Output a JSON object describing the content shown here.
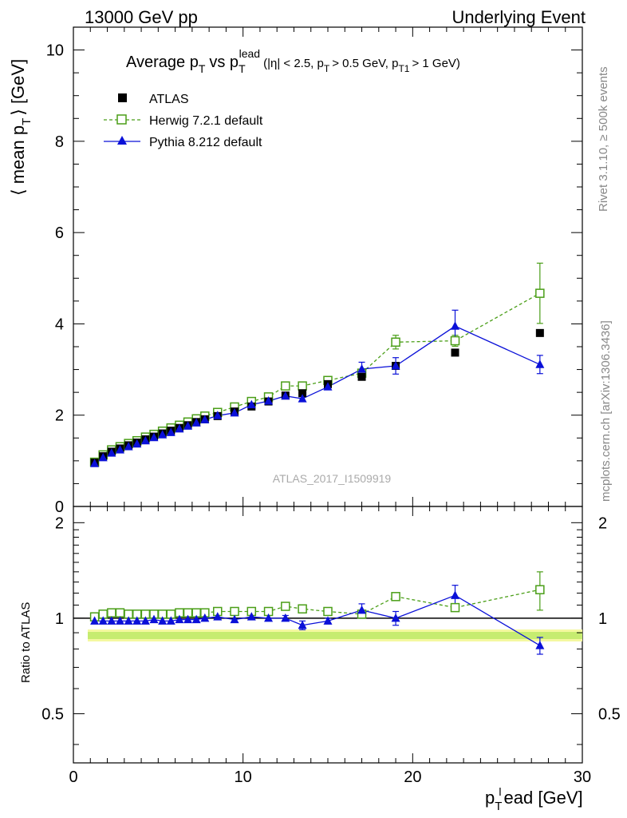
{
  "header": {
    "left": "13000 GeV pp",
    "right": "Underlying Event"
  },
  "side": {
    "rivet": "Rivet 3.1.10, ≥ 500k events",
    "mcplots": "mcplots.cern.ch [arXiv:1306.3436]"
  },
  "chart_data": {
    "type": "scatter",
    "title": {
      "main": "Average p",
      "main_sub": "T",
      "vs": "vs p",
      "vs_sub": "T",
      "vs_sup": "lead",
      "cut1": "(|η| < 2.5, p",
      "cut1_sub": "T",
      "cut2": "> 0.5 GeV, p",
      "cut2_sub": "T1",
      "cut3": "> 1 GeV)"
    },
    "ylabel": {
      "pre": "⟨ mean p",
      "sub": "T",
      "post": "⟩ [GeV]"
    },
    "xlabel": {
      "pre": "p",
      "sub": "T",
      "sup": "l",
      "post": "ead [GeV]"
    },
    "ratio_ylabel": "Ratio to ATLAS",
    "watermark": "ATLAS_2017_I1509919",
    "xlim": [
      0,
      30
    ],
    "ylim": [
      0,
      10.5
    ],
    "ratio_ylim": [
      0.35,
      2.25
    ],
    "x_ticks": [
      "0",
      "10",
      "20",
      "30"
    ],
    "y_ticks": [
      "0",
      "2",
      "4",
      "6",
      "8",
      "10"
    ],
    "ratio_ticks": [
      "0.5",
      "1",
      "2"
    ],
    "legend": [
      "ATLAS",
      "Herwig 7.2.1 default",
      "Pythia 8.212 default"
    ],
    "x": [
      1.25,
      1.75,
      2.25,
      2.75,
      3.25,
      3.75,
      4.25,
      4.75,
      5.25,
      5.75,
      6.25,
      6.75,
      7.25,
      7.75,
      8.5,
      9.5,
      10.5,
      11.5,
      12.5,
      13.5,
      15.0,
      17.0,
      19.0,
      22.5,
      27.5
    ],
    "series": [
      {
        "name": "ATLAS",
        "color": "#000000",
        "marker": "square",
        "values": [
          0.96,
          1.1,
          1.2,
          1.27,
          1.34,
          1.4,
          1.47,
          1.53,
          1.6,
          1.66,
          1.72,
          1.78,
          1.85,
          1.91,
          1.98,
          2.08,
          2.19,
          2.3,
          2.43,
          2.48,
          2.68,
          2.84,
          3.08,
          3.37,
          3.8
        ]
      },
      {
        "name": "Herwig 7.2.1 default",
        "color": "#4a9e17",
        "marker": "open-square",
        "dashed": true,
        "values": [
          0.97,
          1.13,
          1.24,
          1.31,
          1.38,
          1.44,
          1.52,
          1.58,
          1.65,
          1.72,
          1.78,
          1.85,
          1.92,
          1.98,
          2.06,
          2.18,
          2.3,
          2.4,
          2.64,
          2.64,
          2.76,
          2.92,
          3.6,
          3.63,
          4.67
        ],
        "errors": [
          0,
          0,
          0,
          0,
          0,
          0,
          0,
          0,
          0,
          0,
          0,
          0,
          0,
          0,
          0,
          0,
          0,
          0,
          0,
          0,
          0.04,
          0.08,
          0.15,
          0.12,
          0.66
        ]
      },
      {
        "name": "Pythia 8.212 default",
        "color": "#0a10d8",
        "marker": "triangle",
        "values": [
          0.94,
          1.07,
          1.17,
          1.24,
          1.31,
          1.37,
          1.44,
          1.51,
          1.57,
          1.62,
          1.7,
          1.76,
          1.83,
          1.9,
          1.99,
          2.05,
          2.23,
          2.31,
          2.42,
          2.36,
          2.62,
          3.01,
          3.08,
          3.95,
          3.11
        ],
        "errors": [
          0,
          0,
          0,
          0,
          0,
          0,
          0,
          0,
          0,
          0,
          0,
          0,
          0,
          0,
          0,
          0,
          0,
          0,
          0,
          0.06,
          0.05,
          0.15,
          0.18,
          0.35,
          0.2
        ]
      }
    ],
    "ratio": {
      "herwig": [
        1.01,
        1.03,
        1.04,
        1.04,
        1.03,
        1.03,
        1.03,
        1.03,
        1.03,
        1.03,
        1.04,
        1.04,
        1.04,
        1.04,
        1.05,
        1.05,
        1.05,
        1.05,
        1.09,
        1.07,
        1.05,
        1.03,
        1.17,
        1.08,
        1.23
      ],
      "herwig_err": [
        0,
        0,
        0,
        0,
        0,
        0,
        0,
        0,
        0,
        0,
        0,
        0,
        0,
        0,
        0,
        0,
        0,
        0,
        0,
        0,
        0,
        0,
        0.03,
        0.02,
        0.17
      ],
      "pythia": [
        0.98,
        0.98,
        0.98,
        0.98,
        0.98,
        0.98,
        0.98,
        0.99,
        0.98,
        0.98,
        0.99,
        0.99,
        0.99,
        1.0,
        1.01,
        0.99,
        1.01,
        1.0,
        1.0,
        0.95,
        0.98,
        1.06,
        1.0,
        1.18,
        0.82
      ],
      "pythia_err": [
        0,
        0,
        0,
        0,
        0,
        0,
        0,
        0,
        0,
        0,
        0,
        0,
        0,
        0,
        0,
        0,
        0,
        0,
        0.02,
        0.03,
        0.02,
        0.05,
        0.05,
        0.09,
        0.05
      ]
    }
  }
}
